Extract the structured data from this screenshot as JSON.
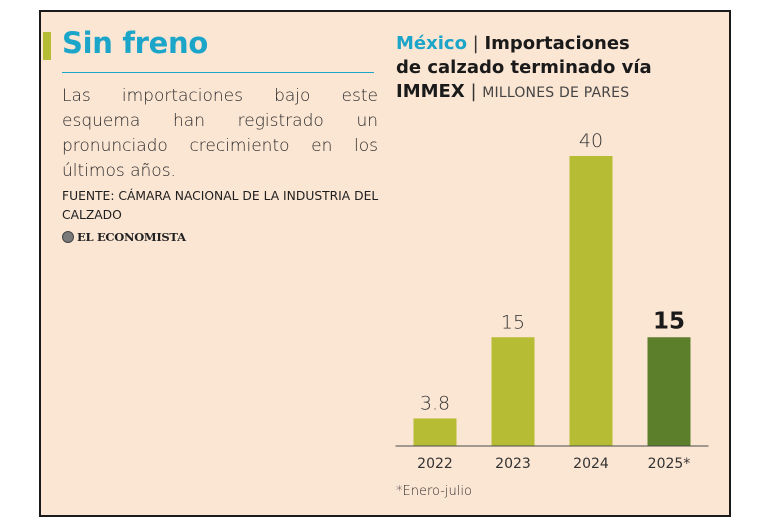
{
  "headline": "Sin freno",
  "description": "Las importaciones bajo este esquema han registrado un pronunciado crecimiento en los últimos años.",
  "source": "FUENTE: CÁMARA NACIONAL DE LA INDUSTRIA DEL CALZADO",
  "brand": "EL ECONOMISTA",
  "footnote": "*Enero-julio",
  "colors": {
    "background": "#fbe5d3",
    "headline": "#1aa5c9",
    "bar_light": "#b6bd35",
    "bar_dark": "#5b7f2a",
    "axis": "#4a4a4a"
  },
  "chart_data": {
    "type": "bar",
    "title_country": "México",
    "title_main_1": "Importaciones",
    "title_main_2": "de calzado terminado vía",
    "title_main_3": "IMMEX",
    "title_units": "MILLONES DE PARES",
    "categories": [
      "2022",
      "2023",
      "2024",
      "2025*"
    ],
    "values": [
      3.8,
      15,
      40,
      15
    ],
    "value_labels": [
      "3.8",
      "15",
      "40",
      "15"
    ],
    "highlight_index": 3,
    "ylim": [
      0,
      40
    ],
    "xlabel": "",
    "ylabel": "",
    "grid": false
  }
}
